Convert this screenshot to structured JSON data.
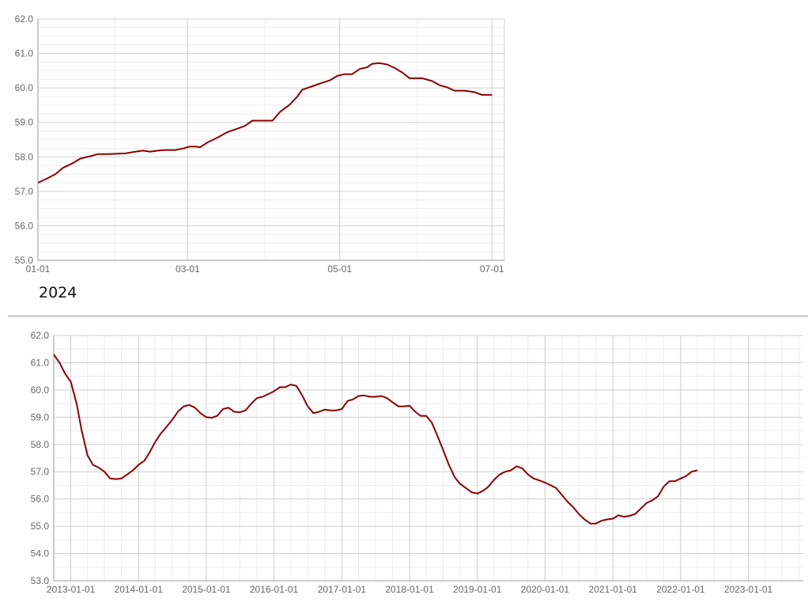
{
  "caption": "2024",
  "colors": {
    "line": "#8b0000",
    "grid_major": "#cfcfcf",
    "grid_minor": "#ececec",
    "axis": "#999999",
    "text": "#666666"
  },
  "chart_data": [
    {
      "type": "line",
      "title": "",
      "xlabel": "",
      "ylabel": "",
      "grid": true,
      "x_ticks": [
        "01-01",
        "03-01",
        "05-01",
        "07-01"
      ],
      "y_ticks": [
        "55.0",
        "56.0",
        "57.0",
        "58.0",
        "59.0",
        "60.0",
        "61.0",
        "62.0"
      ],
      "xlim": [
        "2024-01-01",
        "2024-07-06"
      ],
      "ylim": [
        55,
        62
      ],
      "series": [
        {
          "values": [
            [
              "2024-01-01",
              57.25
            ],
            [
              "2024-01-04",
              57.35
            ],
            [
              "2024-01-08",
              57.5
            ],
            [
              "2024-01-11",
              57.68
            ],
            [
              "2024-01-15",
              57.82
            ],
            [
              "2024-01-18",
              57.95
            ],
            [
              "2024-01-22",
              58.02
            ],
            [
              "2024-01-25",
              58.08
            ],
            [
              "2024-01-29",
              58.08
            ],
            [
              "2024-02-01",
              58.09
            ],
            [
              "2024-02-05",
              58.1
            ],
            [
              "2024-02-08",
              58.14
            ],
            [
              "2024-02-12",
              58.18
            ],
            [
              "2024-02-15",
              58.15
            ],
            [
              "2024-02-18",
              58.18
            ],
            [
              "2024-02-21",
              58.2
            ],
            [
              "2024-02-25",
              58.2
            ],
            [
              "2024-02-28",
              58.24
            ],
            [
              "2024-03-02",
              58.3
            ],
            [
              "2024-03-04",
              58.3
            ],
            [
              "2024-03-06",
              58.28
            ],
            [
              "2024-03-09",
              58.42
            ],
            [
              "2024-03-13",
              58.56
            ],
            [
              "2024-03-17",
              58.72
            ],
            [
              "2024-03-21",
              58.82
            ],
            [
              "2024-03-24",
              58.9
            ],
            [
              "2024-03-27",
              59.05
            ],
            [
              "2024-03-31",
              59.05
            ],
            [
              "2024-04-04",
              59.05
            ],
            [
              "2024-04-07",
              59.3
            ],
            [
              "2024-04-11",
              59.52
            ],
            [
              "2024-04-14",
              59.75
            ],
            [
              "2024-04-16",
              59.95
            ],
            [
              "2024-04-20",
              60.05
            ],
            [
              "2024-04-24",
              60.15
            ],
            [
              "2024-04-27",
              60.22
            ],
            [
              "2024-04-30",
              60.35
            ],
            [
              "2024-05-03",
              60.4
            ],
            [
              "2024-05-06",
              60.4
            ],
            [
              "2024-05-09",
              60.55
            ],
            [
              "2024-05-12",
              60.6
            ],
            [
              "2024-05-14",
              60.7
            ],
            [
              "2024-05-17",
              60.72
            ],
            [
              "2024-05-20",
              60.68
            ],
            [
              "2024-05-23",
              60.58
            ],
            [
              "2024-05-26",
              60.45
            ],
            [
              "2024-05-29",
              60.28
            ],
            [
              "2024-06-03",
              60.28
            ],
            [
              "2024-06-07",
              60.2
            ],
            [
              "2024-06-10",
              60.08
            ],
            [
              "2024-06-13",
              60.02
            ],
            [
              "2024-06-16",
              59.92
            ],
            [
              "2024-06-20",
              59.92
            ],
            [
              "2024-06-24",
              59.88
            ],
            [
              "2024-06-27",
              59.8
            ],
            [
              "2024-07-01",
              59.8
            ]
          ]
        }
      ]
    },
    {
      "type": "line",
      "title": "",
      "xlabel": "",
      "ylabel": "",
      "grid": true,
      "x_ticks": [
        "2013-01-01",
        "2014-01-01",
        "2015-01-01",
        "2016-01-01",
        "2017-01-01",
        "2018-01-01",
        "2019-01-01",
        "2020-01-01",
        "2021-01-01",
        "2022-01-01",
        "2023-01-01"
      ],
      "y_ticks": [
        "53.0",
        "54.0",
        "55.0",
        "56.0",
        "57.0",
        "58.0",
        "59.0",
        "60.0",
        "61.0",
        "62.0"
      ],
      "xlim": [
        "2012-10-01",
        "2023-10-24"
      ],
      "ylim": [
        53,
        62
      ],
      "series": [
        {
          "values": [
            [
              "2012-10-01",
              61.3
            ],
            [
              "2012-11-01",
              61.0
            ],
            [
              "2012-12-01",
              60.6
            ],
            [
              "2013-01-01",
              60.3
            ],
            [
              "2013-02-01",
              59.5
            ],
            [
              "2013-03-01",
              58.5
            ],
            [
              "2013-04-01",
              57.6
            ],
            [
              "2013-05-01",
              57.25
            ],
            [
              "2013-06-01",
              57.15
            ],
            [
              "2013-07-01",
              57.0
            ],
            [
              "2013-08-01",
              56.75
            ],
            [
              "2013-09-01",
              56.73
            ],
            [
              "2013-10-01",
              56.75
            ],
            [
              "2013-11-01",
              56.9
            ],
            [
              "2013-12-01",
              57.05
            ],
            [
              "2014-01-01",
              57.25
            ],
            [
              "2014-02-01",
              57.4
            ],
            [
              "2014-03-01",
              57.7
            ],
            [
              "2014-04-01",
              58.1
            ],
            [
              "2014-05-01",
              58.4
            ],
            [
              "2014-06-01",
              58.65
            ],
            [
              "2014-07-01",
              58.9
            ],
            [
              "2014-08-01",
              59.2
            ],
            [
              "2014-09-01",
              59.4
            ],
            [
              "2014-10-01",
              59.45
            ],
            [
              "2014-11-01",
              59.35
            ],
            [
              "2014-12-01",
              59.15
            ],
            [
              "2015-01-01",
              59.0
            ],
            [
              "2015-02-01",
              58.98
            ],
            [
              "2015-03-01",
              59.05
            ],
            [
              "2015-04-01",
              59.3
            ],
            [
              "2015-05-01",
              59.35
            ],
            [
              "2015-06-01",
              59.2
            ],
            [
              "2015-07-01",
              59.18
            ],
            [
              "2015-08-01",
              59.25
            ],
            [
              "2015-09-01",
              59.5
            ],
            [
              "2015-10-01",
              59.7
            ],
            [
              "2015-11-01",
              59.75
            ],
            [
              "2015-12-01",
              59.85
            ],
            [
              "2016-01-01",
              59.95
            ],
            [
              "2016-02-01",
              60.1
            ],
            [
              "2016-03-01",
              60.1
            ],
            [
              "2016-04-01",
              60.2
            ],
            [
              "2016-05-01",
              60.15
            ],
            [
              "2016-06-01",
              59.8
            ],
            [
              "2016-07-01",
              59.4
            ],
            [
              "2016-08-01",
              59.15
            ],
            [
              "2016-09-01",
              59.2
            ],
            [
              "2016-10-01",
              59.28
            ],
            [
              "2016-11-01",
              59.25
            ],
            [
              "2016-12-01",
              59.25
            ],
            [
              "2017-01-01",
              59.3
            ],
            [
              "2017-02-01",
              59.6
            ],
            [
              "2017-03-01",
              59.65
            ],
            [
              "2017-04-01",
              59.78
            ],
            [
              "2017-05-01",
              59.8
            ],
            [
              "2017-06-01",
              59.75
            ],
            [
              "2017-07-01",
              59.75
            ],
            [
              "2017-08-01",
              59.78
            ],
            [
              "2017-09-01",
              59.7
            ],
            [
              "2017-10-01",
              59.55
            ],
            [
              "2017-11-01",
              59.4
            ],
            [
              "2017-12-01",
              59.4
            ],
            [
              "2018-01-01",
              59.42
            ],
            [
              "2018-02-01",
              59.2
            ],
            [
              "2018-03-01",
              59.05
            ],
            [
              "2018-04-01",
              59.05
            ],
            [
              "2018-05-01",
              58.8
            ],
            [
              "2018-06-01",
              58.3
            ],
            [
              "2018-07-01",
              57.8
            ],
            [
              "2018-08-01",
              57.25
            ],
            [
              "2018-09-01",
              56.8
            ],
            [
              "2018-10-01",
              56.55
            ],
            [
              "2018-11-01",
              56.4
            ],
            [
              "2018-12-01",
              56.25
            ],
            [
              "2019-01-01",
              56.2
            ],
            [
              "2019-02-01",
              56.3
            ],
            [
              "2019-03-01",
              56.45
            ],
            [
              "2019-04-01",
              56.7
            ],
            [
              "2019-05-01",
              56.9
            ],
            [
              "2019-06-01",
              57.0
            ],
            [
              "2019-07-01",
              57.05
            ],
            [
              "2019-08-01",
              57.2
            ],
            [
              "2019-09-01",
              57.12
            ],
            [
              "2019-10-01",
              56.9
            ],
            [
              "2019-11-01",
              56.75
            ],
            [
              "2019-12-01",
              56.68
            ],
            [
              "2020-01-01",
              56.6
            ],
            [
              "2020-02-01",
              56.5
            ],
            [
              "2020-03-01",
              56.4
            ],
            [
              "2020-04-01",
              56.15
            ],
            [
              "2020-05-01",
              55.9
            ],
            [
              "2020-06-01",
              55.7
            ],
            [
              "2020-07-01",
              55.45
            ],
            [
              "2020-08-01",
              55.25
            ],
            [
              "2020-09-01",
              55.1
            ],
            [
              "2020-10-01",
              55.1
            ],
            [
              "2020-11-01",
              55.2
            ],
            [
              "2020-12-01",
              55.25
            ],
            [
              "2021-01-01",
              55.28
            ],
            [
              "2021-02-01",
              55.4
            ],
            [
              "2021-03-01",
              55.35
            ],
            [
              "2021-04-01",
              55.38
            ],
            [
              "2021-05-01",
              55.45
            ],
            [
              "2021-06-01",
              55.65
            ],
            [
              "2021-07-01",
              55.85
            ],
            [
              "2021-08-01",
              55.95
            ],
            [
              "2021-09-01",
              56.1
            ],
            [
              "2021-10-01",
              56.45
            ],
            [
              "2021-11-01",
              56.65
            ],
            [
              "2021-12-01",
              56.65
            ],
            [
              "2022-01-01",
              56.75
            ],
            [
              "2022-02-01",
              56.85
            ],
            [
              "2022-03-01",
              57.0
            ],
            [
              "2022-04-01",
              57.05
            ]
          ]
        }
      ]
    }
  ]
}
